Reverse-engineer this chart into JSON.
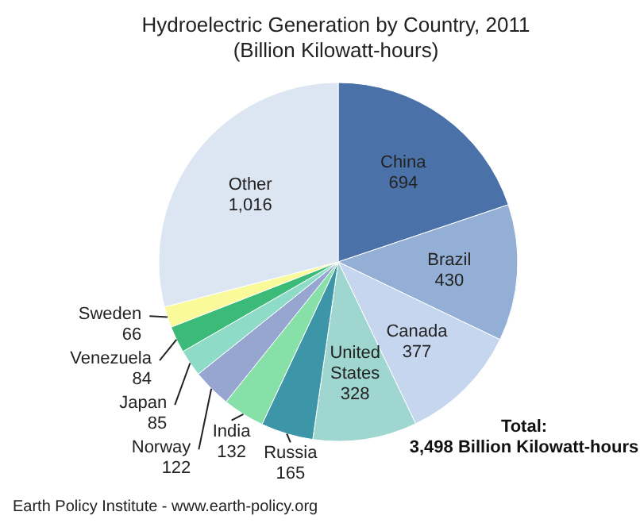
{
  "chart_data": {
    "type": "pie",
    "title": "Hydroelectric Generation by Country, 2011",
    "subtitle": "(Billion Kilowatt-hours)",
    "categories": [
      "China",
      "Brazil",
      "Canada",
      "United States",
      "Russia",
      "India",
      "Norway",
      "Japan",
      "Venezuela",
      "Sweden",
      "Other"
    ],
    "values": [
      694,
      430,
      377,
      328,
      165,
      132,
      122,
      85,
      84,
      66,
      1016
    ],
    "value_labels": [
      "694",
      "430",
      "377",
      "328",
      "165",
      "132",
      "122",
      "85",
      "84",
      "66",
      "1,016"
    ],
    "colors": [
      "#4a72a8",
      "#93afd6",
      "#c6d6ee",
      "#9fd6d0",
      "#3d96a8",
      "#86e0a8",
      "#96a6d0",
      "#8edcc8",
      "#3cba78",
      "#fafa9a",
      "#dce6f2"
    ],
    "data_labels": true,
    "annotations": [
      "Total:\n3,498 Billion Kilowatt-hours",
      "Earth Policy Institute - www.earth-policy.org"
    ]
  }
}
